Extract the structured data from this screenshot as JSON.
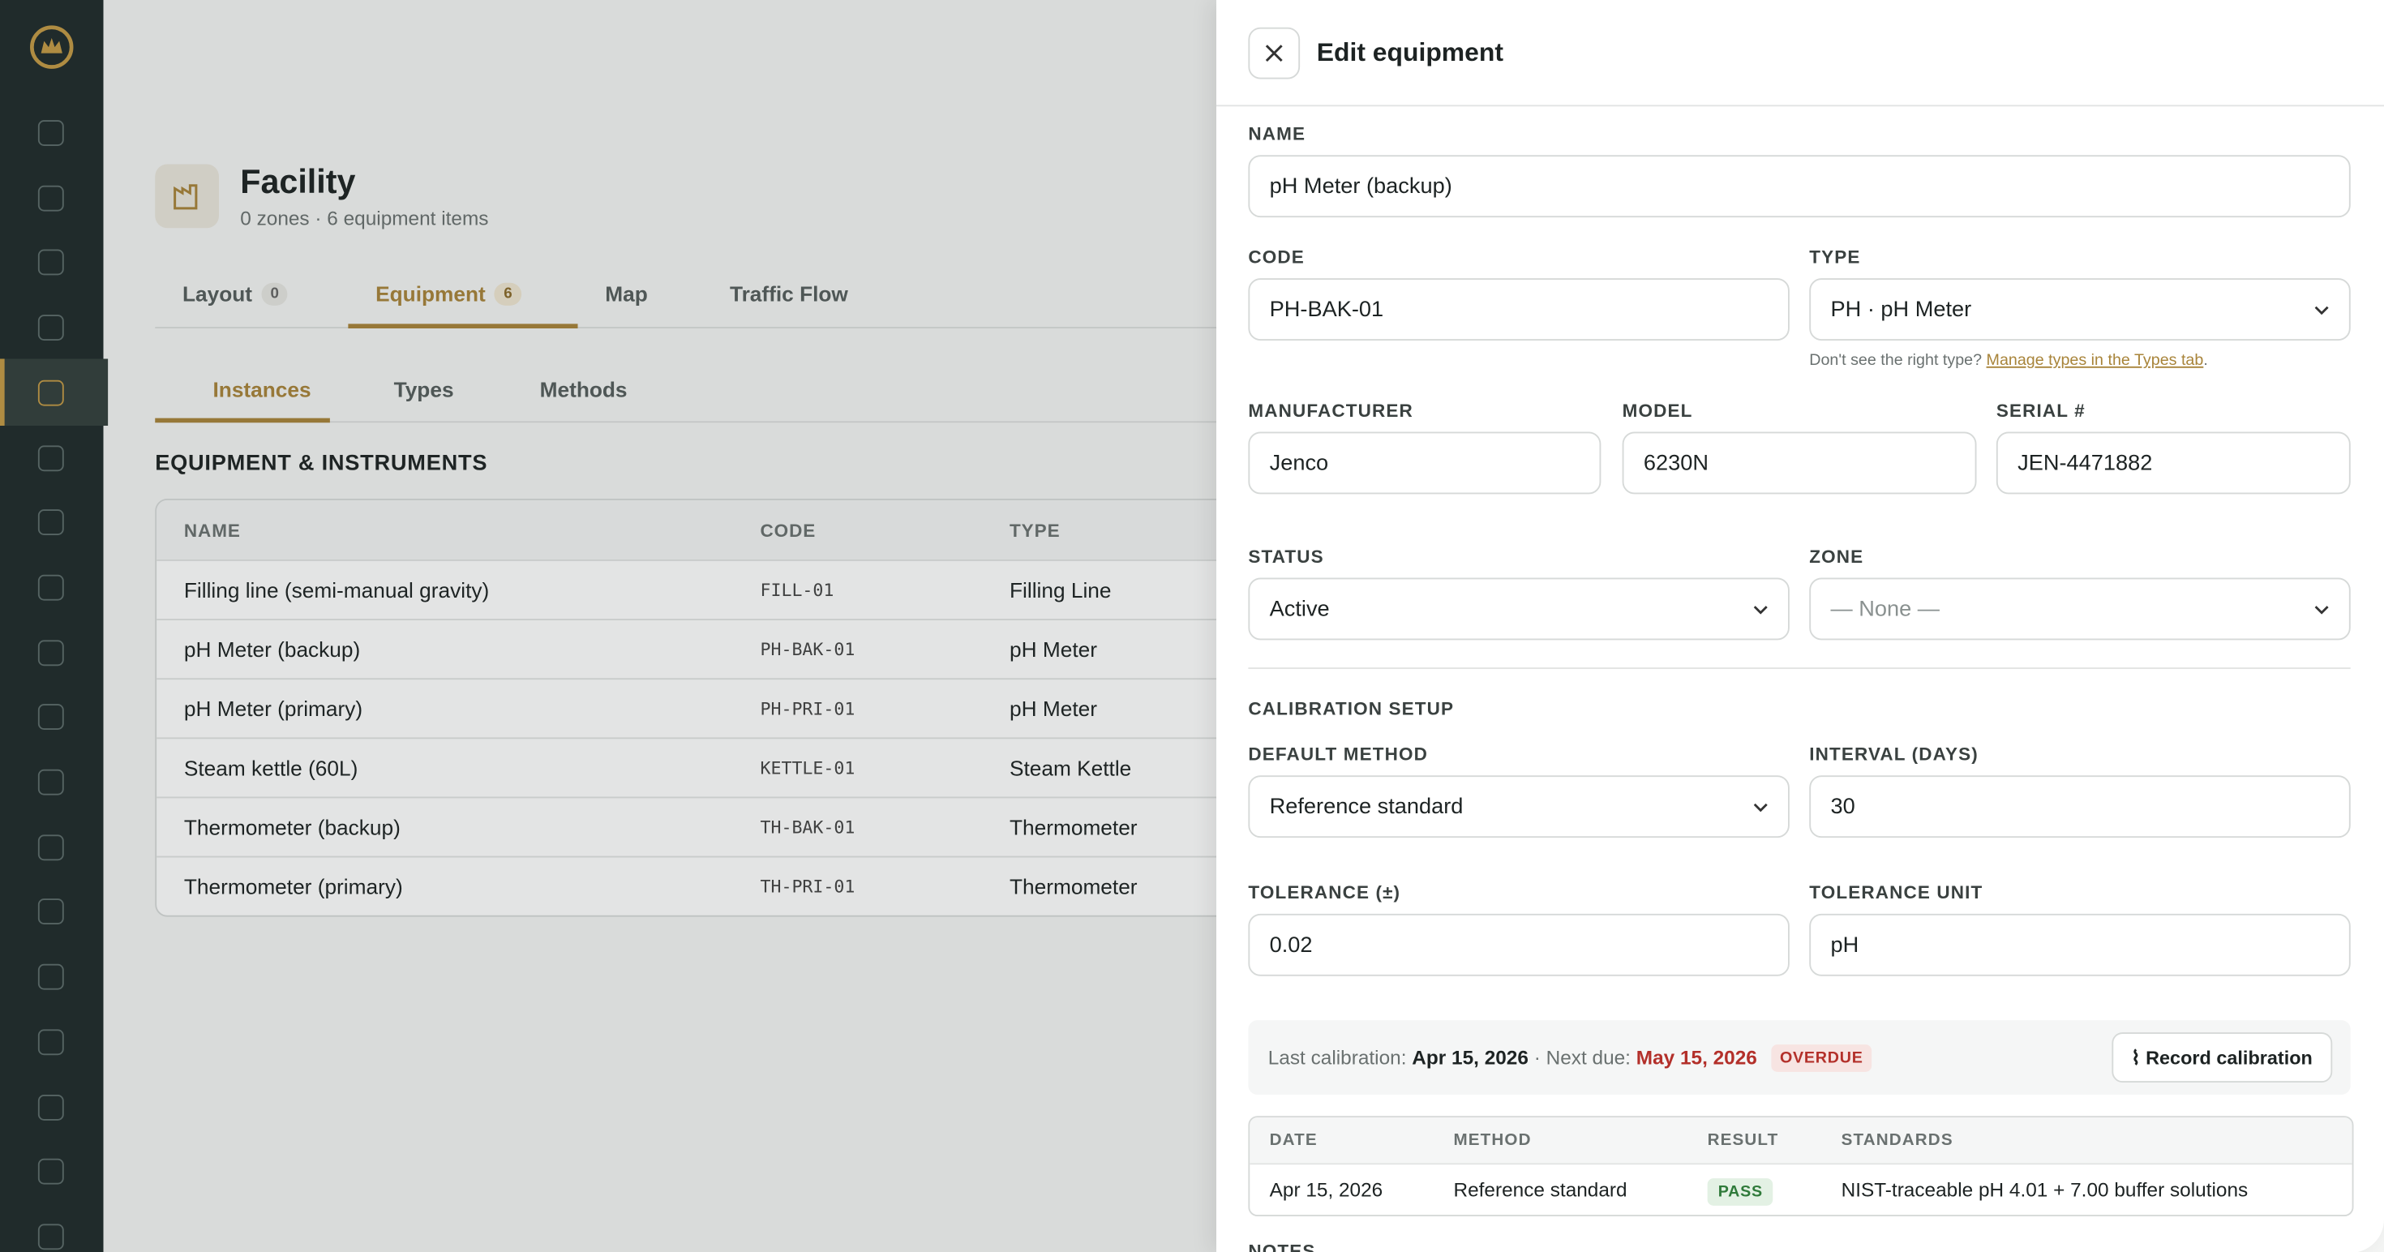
{
  "facility": {
    "title": "Facility",
    "subtitle": "0 zones · 6 equipment items"
  },
  "tabs": [
    {
      "label": "Layout",
      "count": 0
    },
    {
      "label": "Equipment",
      "count": 6
    },
    {
      "label": "Map"
    },
    {
      "label": "Traffic Flow"
    }
  ],
  "subtabs": [
    "Instances",
    "Types",
    "Methods"
  ],
  "section_title": "EQUIPMENT & INSTRUMENTS",
  "table": {
    "columns": [
      "NAME",
      "CODE",
      "TYPE"
    ],
    "rows": [
      [
        "Filling line (semi-manual gravity)",
        "FILL-01",
        "Filling Line"
      ],
      [
        "pH Meter (backup)",
        "PH-BAK-01",
        "pH Meter"
      ],
      [
        "pH Meter (primary)",
        "PH-PRI-01",
        "pH Meter"
      ],
      [
        "Steam kettle (60L)",
        "KETTLE-01",
        "Steam Kettle"
      ],
      [
        "Thermometer (backup)",
        "TH-BAK-01",
        "Thermometer"
      ],
      [
        "Thermometer (primary)",
        "TH-PRI-01",
        "Thermometer"
      ]
    ]
  },
  "drawer": {
    "title": "Edit equipment",
    "fields": {
      "name": {
        "label": "NAME",
        "value": "pH Meter (backup)"
      },
      "code": {
        "label": "CODE",
        "value": "PH-BAK-01"
      },
      "type": {
        "label": "TYPE",
        "value": "PH · pH Meter"
      },
      "manufacturer": {
        "label": "MANUFACTURER",
        "value": "Jenco"
      },
      "model": {
        "label": "MODEL",
        "value": "6230N"
      },
      "serial": {
        "label": "SERIAL #",
        "value": "JEN-4471882"
      },
      "status": {
        "label": "STATUS",
        "value": "Active"
      },
      "zone": {
        "label": "ZONE",
        "value": "— None —"
      },
      "default_method": {
        "label": "DEFAULT METHOD",
        "value": "Reference standard"
      },
      "interval": {
        "label": "INTERVAL (DAYS)",
        "value": "30"
      },
      "tolerance": {
        "label": "TOLERANCE (±)",
        "value": "0.02"
      },
      "tolerance_unit": {
        "label": "TOLERANCE UNIT",
        "value": "pH"
      }
    },
    "type_hint": {
      "text": "Don't see the right type?",
      "link": "Manage types in the Types tab",
      "suffix": "."
    },
    "calibration_heading": "CALIBRATION SETUP",
    "calibration": {
      "last_label": "Last calibration:",
      "last_date": "Apr 15, 2026",
      "next_label": "· Next due:",
      "next_date": "May 15, 2026",
      "badge": "OVERDUE",
      "button": "Record calibration"
    },
    "history": {
      "columns": [
        "DATE",
        "METHOD",
        "RESULT",
        "STANDARDS"
      ],
      "rows": [
        [
          "Apr 15, 2026",
          "Reference standard",
          "PASS",
          "NIST-traceable pH 4.01 + 7.00 buffer solutions"
        ]
      ]
    },
    "notes_heading": "NOTES"
  }
}
